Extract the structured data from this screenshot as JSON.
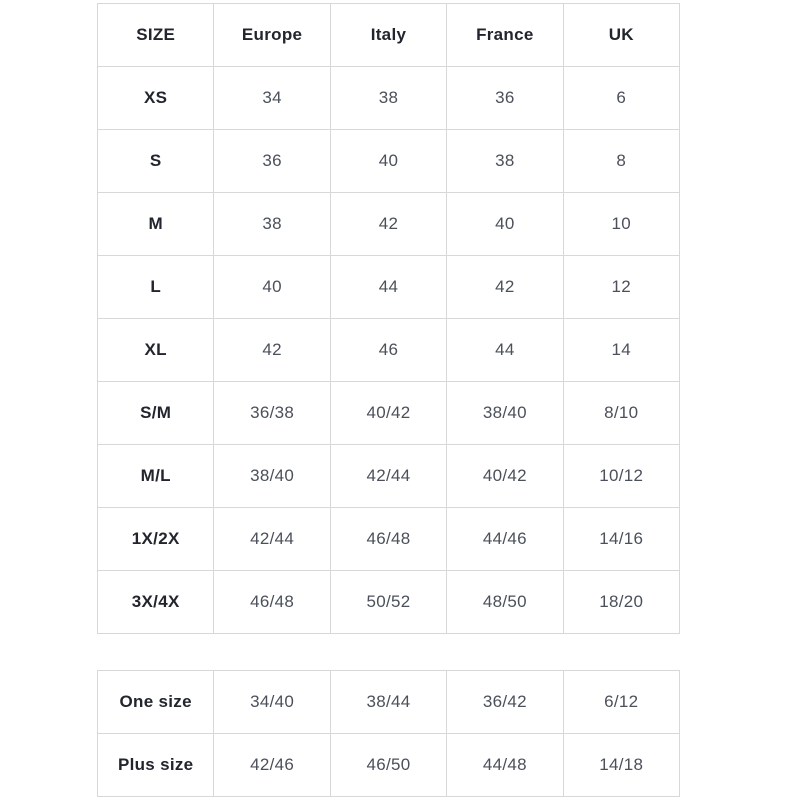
{
  "colors": {
    "background": "#ffffff",
    "border": "#d8d8d8",
    "header_text": "#23252e",
    "value_text": "#4b505a"
  },
  "size_chart": {
    "headers": [
      "SIZE",
      "Europe",
      "Italy",
      "France",
      "UK"
    ],
    "rows": [
      [
        "XS",
        "34",
        "38",
        "36",
        "6"
      ],
      [
        "S",
        "36",
        "40",
        "38",
        "8"
      ],
      [
        "M",
        "38",
        "42",
        "40",
        "10"
      ],
      [
        "L",
        "40",
        "44",
        "42",
        "12"
      ],
      [
        "XL",
        "42",
        "46",
        "44",
        "14"
      ],
      [
        "S/M",
        "36/38",
        "40/42",
        "38/40",
        "8/10"
      ],
      [
        "M/L",
        "38/40",
        "42/44",
        "40/42",
        "10/12"
      ],
      [
        "1X/2X",
        "42/44",
        "46/48",
        "44/46",
        "14/16"
      ],
      [
        "3X/4X",
        "46/48",
        "50/52",
        "48/50",
        "18/20"
      ]
    ]
  },
  "special_sizes": {
    "rows": [
      [
        "One size",
        "34/40",
        "38/44",
        "36/42",
        "6/12"
      ],
      [
        "Plus size",
        "42/46",
        "46/50",
        "44/48",
        "14/18"
      ]
    ]
  }
}
